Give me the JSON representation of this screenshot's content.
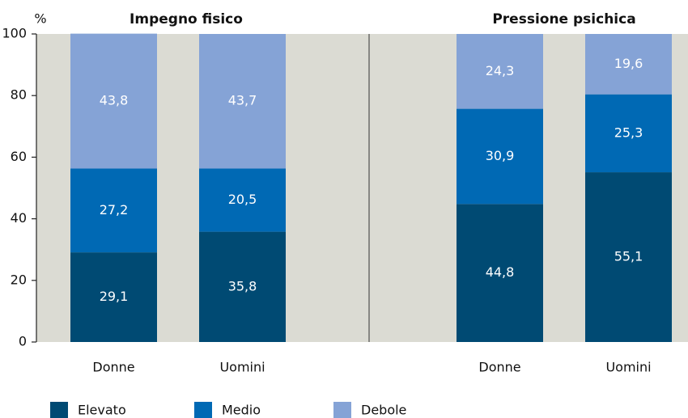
{
  "chart_data": [
    {
      "type": "bar",
      "stacked": true,
      "title": "Impegno fisico",
      "ylabel": "%",
      "categories": [
        "Donne",
        "Uomini"
      ],
      "series": [
        {
          "name": "Elevato",
          "color": "#004a73",
          "values": [
            29.1,
            35.8
          ],
          "value_labels": [
            "29,1",
            "35,8"
          ]
        },
        {
          "name": "Medio",
          "color": "#0069b4",
          "values": [
            27.2,
            20.5
          ],
          "value_labels": [
            "27,2",
            "20,5"
          ]
        },
        {
          "name": "Debole",
          "color": "#85a3d6",
          "values": [
            43.8,
            43.7
          ],
          "value_labels": [
            "43,8",
            "43,7"
          ]
        }
      ],
      "ylim": [
        0,
        100
      ],
      "yticks": [
        0,
        20,
        40,
        60,
        80,
        100
      ]
    },
    {
      "type": "bar",
      "stacked": true,
      "title": "Pressione psichica",
      "categories": [
        "Donne",
        "Uomini"
      ],
      "series": [
        {
          "color": "#004a73",
          "values": [
            44.8,
            55.1
          ],
          "value_labels": [
            "44,8",
            "55,1"
          ]
        },
        {
          "color": "#0069b4",
          "values": [
            30.9,
            25.3
          ],
          "value_labels": [
            "30,9",
            "25,3"
          ]
        },
        {
          "color": "#85a3d6",
          "values": [
            24.3,
            19.6
          ],
          "value_labels": [
            "24,3",
            "19,6"
          ]
        }
      ],
      "ylim": [
        0,
        100
      ]
    }
  ]
}
